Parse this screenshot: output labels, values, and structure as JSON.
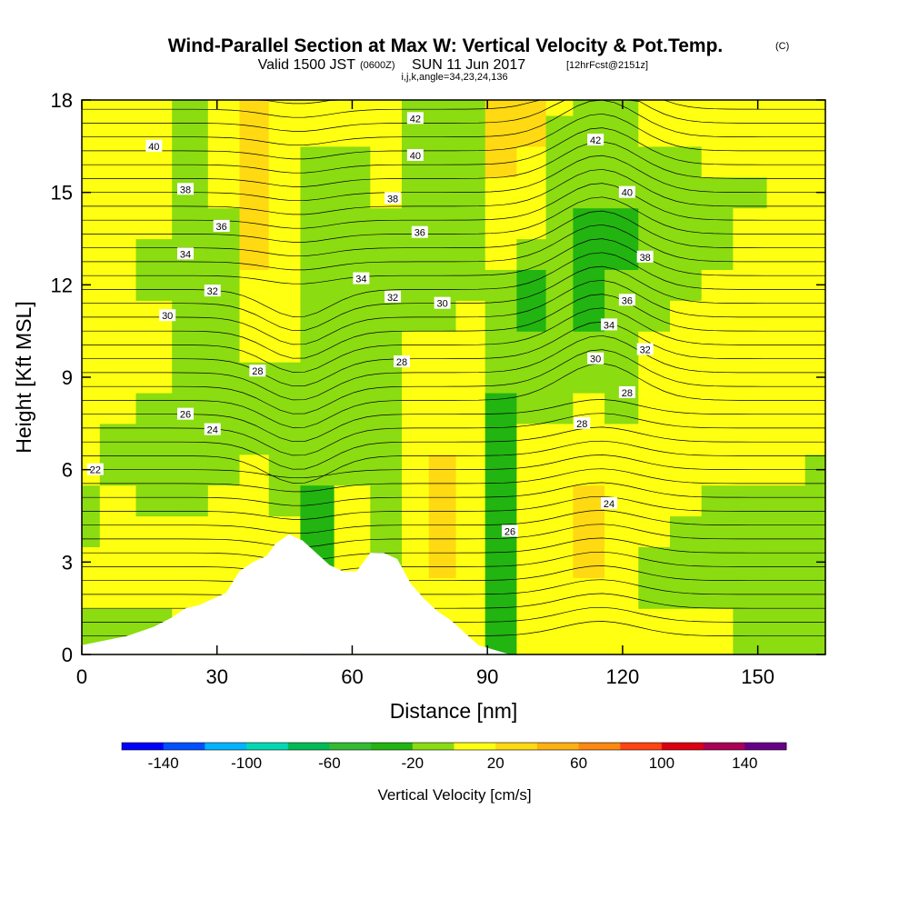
{
  "title": {
    "main": "Wind-Parallel Section at Max W: Vertical Velocity & Pot.Temp.",
    "copyright": "(C)",
    "valid_prefix": "Valid 1500 JST",
    "valid_z": "(0600Z)",
    "valid_date": "SUN 11 Jun 2017",
    "forecast": "[12hrFcst@2151z]",
    "indices": "i,j,k,angle=34,23,24,136"
  },
  "chart_data": {
    "type": "heatmap",
    "xlabel": "Distance [nm]",
    "ylabel": "Height [Kft MSL]",
    "xlim": [
      0,
      165
    ],
    "ylim": [
      0,
      18
    ],
    "x_ticks": [
      0,
      30,
      60,
      90,
      120,
      150
    ],
    "y_ticks": [
      0,
      3,
      6,
      9,
      12,
      15,
      18
    ],
    "field": "Vertical Velocity",
    "velocity_columns": [
      {
        "x": 0,
        "w": [
          -10,
          -10,
          10,
          10,
          -10,
          -10,
          10,
          10,
          10,
          10,
          10,
          10,
          10,
          10,
          10,
          10,
          10,
          10,
          10
        ]
      },
      {
        "x": 8,
        "w": [
          -10,
          -10,
          10,
          10,
          10,
          10,
          -10,
          -10,
          10,
          10,
          10,
          10,
          10,
          10,
          10,
          10,
          10,
          10,
          10
        ]
      },
      {
        "x": 16,
        "w": [
          -10,
          -10,
          10,
          10,
          10,
          -10,
          -10,
          -10,
          -10,
          10,
          10,
          10,
          -10,
          -10,
          10,
          10,
          10,
          10,
          10
        ]
      },
      {
        "x": 24,
        "w": [
          10,
          10,
          10,
          10,
          10,
          -10,
          -10,
          -10,
          -10,
          -10,
          -10,
          -10,
          -10,
          -10,
          -10,
          -10,
          -10,
          -10,
          -10
        ]
      },
      {
        "x": 32,
        "w": [
          10,
          10,
          10,
          10,
          10,
          10,
          -10,
          -10,
          -10,
          -10,
          -10,
          -10,
          -10,
          -10,
          -10,
          10,
          10,
          10,
          10
        ]
      },
      {
        "x": 38,
        "w": [
          10,
          10,
          10,
          10,
          10,
          10,
          10,
          -10,
          -10,
          -10,
          10,
          10,
          10,
          30,
          30,
          30,
          30,
          30,
          30
        ]
      },
      {
        "x": 45,
        "w": [
          10,
          10,
          10,
          10,
          10,
          -10,
          -10,
          -10,
          -10,
          -10,
          10,
          10,
          10,
          10,
          10,
          10,
          10,
          10,
          10
        ]
      },
      {
        "x": 52,
        "w": [
          -30,
          -30,
          -30,
          -30,
          -30,
          -30,
          -10,
          -10,
          -10,
          -10,
          -10,
          -10,
          -10,
          -10,
          -10,
          -10,
          -10,
          10,
          10
        ]
      },
      {
        "x": 60,
        "w": [
          10,
          10,
          10,
          10,
          10,
          10,
          -10,
          -10,
          -10,
          -10,
          -10,
          -10,
          -10,
          -10,
          -10,
          -10,
          -10,
          10,
          10
        ]
      },
      {
        "x": 68,
        "w": [
          10,
          10,
          10,
          -10,
          -10,
          -10,
          -10,
          -10,
          -10,
          -10,
          -10,
          -10,
          -10,
          -10,
          -10,
          10,
          10,
          10,
          10
        ]
      },
      {
        "x": 74,
        "w": [
          10,
          10,
          10,
          10,
          10,
          10,
          10,
          10,
          10,
          10,
          10,
          -10,
          -10,
          -10,
          -10,
          -10,
          -10,
          -10,
          -10
        ]
      },
      {
        "x": 80,
        "w": [
          10,
          10,
          10,
          30,
          30,
          30,
          30,
          10,
          10,
          10,
          10,
          -10,
          -10,
          -10,
          -10,
          -10,
          -10,
          -10,
          -10
        ]
      },
      {
        "x": 86,
        "w": [
          10,
          10,
          10,
          10,
          10,
          10,
          10,
          10,
          10,
          10,
          10,
          10,
          -10,
          -10,
          -10,
          -10,
          -10,
          -10,
          -10
        ]
      },
      {
        "x": 93,
        "w": [
          -30,
          -30,
          -30,
          -30,
          -30,
          -30,
          -30,
          -30,
          -30,
          -10,
          -10,
          -10,
          -10,
          10,
          10,
          10,
          30,
          30,
          30
        ]
      },
      {
        "x": 100,
        "w": [
          10,
          10,
          10,
          10,
          10,
          10,
          10,
          10,
          -10,
          -10,
          -10,
          -30,
          -30,
          -10,
          10,
          10,
          10,
          30,
          30
        ]
      },
      {
        "x": 106,
        "w": [
          10,
          10,
          10,
          10,
          10,
          10,
          10,
          10,
          -10,
          -10,
          -10,
          -10,
          -10,
          -10,
          -10,
          -10,
          -10,
          -10,
          10
        ]
      },
      {
        "x": 112,
        "w": [
          10,
          10,
          10,
          30,
          30,
          30,
          10,
          10,
          10,
          -10,
          -10,
          -30,
          -30,
          -30,
          -30,
          -10,
          -10,
          -10,
          -10
        ]
      },
      {
        "x": 120,
        "w": [
          10,
          10,
          10,
          10,
          10,
          10,
          10,
          10,
          -10,
          -10,
          -10,
          -10,
          -10,
          -30,
          -30,
          -10,
          -10,
          -10,
          -10
        ]
      },
      {
        "x": 127,
        "w": [
          10,
          10,
          -10,
          -10,
          10,
          10,
          10,
          10,
          10,
          10,
          10,
          -10,
          -10,
          -10,
          -10,
          -10,
          -10,
          10,
          10
        ]
      },
      {
        "x": 134,
        "w": [
          10,
          10,
          -10,
          -10,
          -10,
          10,
          10,
          10,
          10,
          10,
          10,
          10,
          -10,
          -10,
          -10,
          -10,
          -10,
          10,
          10
        ]
      },
      {
        "x": 141,
        "w": [
          10,
          10,
          -10,
          -10,
          -10,
          -10,
          10,
          10,
          10,
          10,
          10,
          10,
          10,
          -10,
          -10,
          -10,
          10,
          10,
          10
        ]
      },
      {
        "x": 148,
        "w": [
          -10,
          -10,
          -10,
          -10,
          -10,
          -10,
          10,
          10,
          10,
          10,
          10,
          10,
          10,
          10,
          10,
          -10,
          10,
          10,
          10
        ]
      },
      {
        "x": 156,
        "w": [
          -10,
          -10,
          -10,
          -10,
          -10,
          -10,
          10,
          10,
          10,
          10,
          10,
          10,
          10,
          10,
          10,
          10,
          10,
          10,
          10
        ]
      },
      {
        "x": 165,
        "w": [
          -10,
          -10,
          -10,
          -10,
          -10,
          -10,
          -10,
          10,
          10,
          10,
          10,
          10,
          10,
          10,
          10,
          10,
          10,
          10,
          10
        ]
      }
    ],
    "terrain_profile": [
      {
        "x": 0,
        "h": 0.3
      },
      {
        "x": 10,
        "h": 0.6
      },
      {
        "x": 16,
        "h": 0.9
      },
      {
        "x": 20,
        "h": 1.2
      },
      {
        "x": 23,
        "h": 1.5
      },
      {
        "x": 26,
        "h": 1.6
      },
      {
        "x": 29,
        "h": 1.8
      },
      {
        "x": 32,
        "h": 2.0
      },
      {
        "x": 35,
        "h": 2.7
      },
      {
        "x": 38,
        "h": 3.0
      },
      {
        "x": 41,
        "h": 3.2
      },
      {
        "x": 43,
        "h": 3.6
      },
      {
        "x": 46,
        "h": 3.9
      },
      {
        "x": 49,
        "h": 3.7
      },
      {
        "x": 52,
        "h": 3.3
      },
      {
        "x": 55,
        "h": 2.9
      },
      {
        "x": 58,
        "h": 2.7
      },
      {
        "x": 61,
        "h": 2.7
      },
      {
        "x": 64,
        "h": 3.3
      },
      {
        "x": 67,
        "h": 3.3
      },
      {
        "x": 70,
        "h": 3.1
      },
      {
        "x": 73,
        "h": 2.3
      },
      {
        "x": 76,
        "h": 1.8
      },
      {
        "x": 79,
        "h": 1.4
      },
      {
        "x": 82,
        "h": 1.1
      },
      {
        "x": 85,
        "h": 0.7
      },
      {
        "x": 88,
        "h": 0.3
      },
      {
        "x": 95,
        "h": 0.0
      },
      {
        "x": 165,
        "h": 0.0
      }
    ],
    "contour_labels": [
      {
        "text": "42",
        "x": 74,
        "y": 17.4
      },
      {
        "text": "42",
        "x": 114,
        "y": 16.7
      },
      {
        "text": "40",
        "x": 16,
        "y": 16.5
      },
      {
        "text": "40",
        "x": 74,
        "y": 16.2
      },
      {
        "text": "40",
        "x": 121,
        "y": 15.0
      },
      {
        "text": "38",
        "x": 23,
        "y": 15.1
      },
      {
        "text": "38",
        "x": 69,
        "y": 14.8
      },
      {
        "text": "38",
        "x": 125,
        "y": 12.9
      },
      {
        "text": "36",
        "x": 31,
        "y": 13.9
      },
      {
        "text": "36",
        "x": 75,
        "y": 13.7
      },
      {
        "text": "36",
        "x": 121,
        "y": 11.5
      },
      {
        "text": "34",
        "x": 23,
        "y": 13.0
      },
      {
        "text": "34",
        "x": 62,
        "y": 12.2
      },
      {
        "text": "34",
        "x": 117,
        "y": 10.7
      },
      {
        "text": "32",
        "x": 29,
        "y": 11.8
      },
      {
        "text": "32",
        "x": 69,
        "y": 11.6
      },
      {
        "text": "32",
        "x": 125,
        "y": 9.9
      },
      {
        "text": "30",
        "x": 19,
        "y": 11.0
      },
      {
        "text": "30",
        "x": 80,
        "y": 11.4
      },
      {
        "text": "30",
        "x": 114,
        "y": 9.6
      },
      {
        "text": "28",
        "x": 39,
        "y": 9.2
      },
      {
        "text": "28",
        "x": 71,
        "y": 9.5
      },
      {
        "text": "28",
        "x": 121,
        "y": 8.5
      },
      {
        "text": "28",
        "x": 111,
        "y": 7.5
      },
      {
        "text": "26",
        "x": 23,
        "y": 7.8
      },
      {
        "text": "26",
        "x": 95,
        "y": 4.0
      },
      {
        "text": "24",
        "x": 29,
        "y": 7.3
      },
      {
        "text": "24",
        "x": 117,
        "y": 4.9
      },
      {
        "text": "22",
        "x": 3,
        "y": 6.0
      }
    ],
    "colorbar": {
      "label": "Vertical Velocity [cm/s]",
      "tick_labels": [
        "-140",
        "-100",
        "-60",
        "-20",
        "20",
        "60",
        "100",
        "140"
      ],
      "bins": [
        -160,
        -140,
        -120,
        -100,
        -80,
        -60,
        -40,
        -20,
        0,
        20,
        40,
        60,
        80,
        100,
        120,
        140,
        160
      ],
      "colors": [
        "#0000ff",
        "#0050ff",
        "#00b4ff",
        "#00d9b4",
        "#00bb55",
        "#33bb33",
        "#22b411",
        "#8bdc11",
        "#ffff11",
        "#ffd911",
        "#ffb111",
        "#ff8811",
        "#ff4411",
        "#dd0011",
        "#aa0055",
        "#660088"
      ]
    }
  }
}
